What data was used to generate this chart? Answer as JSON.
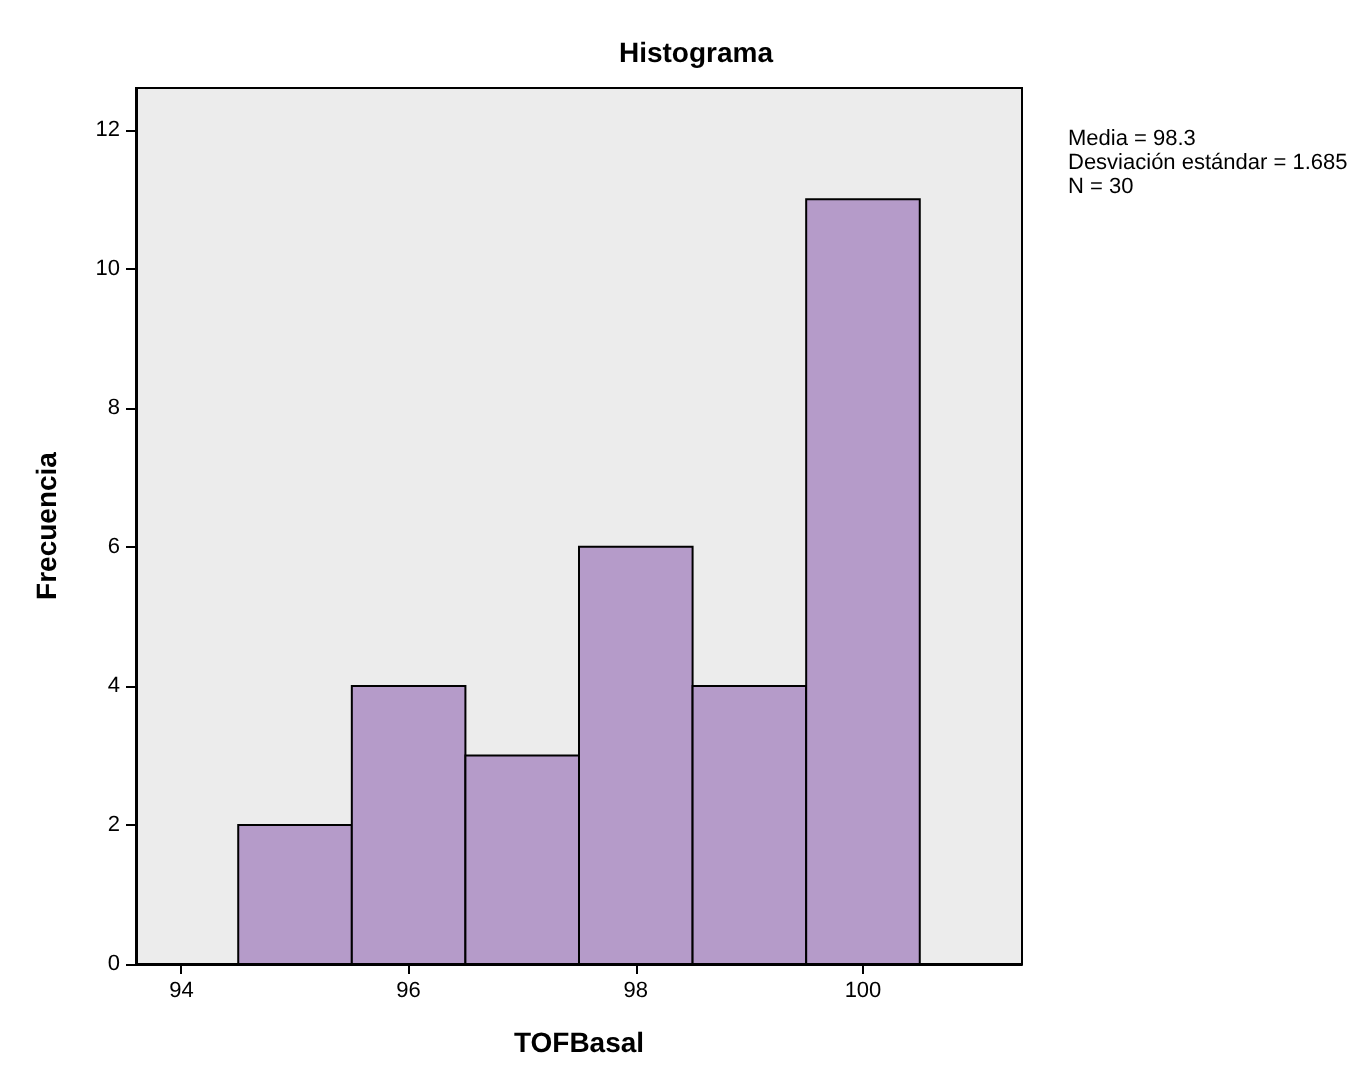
{
  "chart_data": {
    "type": "histogram",
    "title": "Histograma",
    "xlabel": "TOFBasal",
    "ylabel": "Frecuencia",
    "bins": [
      94.5,
      95.5,
      96.5,
      97.5,
      98.5,
      99.5,
      100.5
    ],
    "values": [
      2,
      4,
      3,
      6,
      4,
      11
    ],
    "color": "#b59bc9",
    "xlim": [
      93.6,
      101.4
    ],
    "xticks": [
      94,
      96,
      98,
      100
    ],
    "ylim": [
      0,
      12.6
    ],
    "yticks": [
      0,
      2,
      4,
      6,
      8,
      10,
      12
    ],
    "grid": false,
    "annotations": [
      "Media = 98.3",
      "Desviación estándar = 1.685",
      "N = 30"
    ]
  }
}
